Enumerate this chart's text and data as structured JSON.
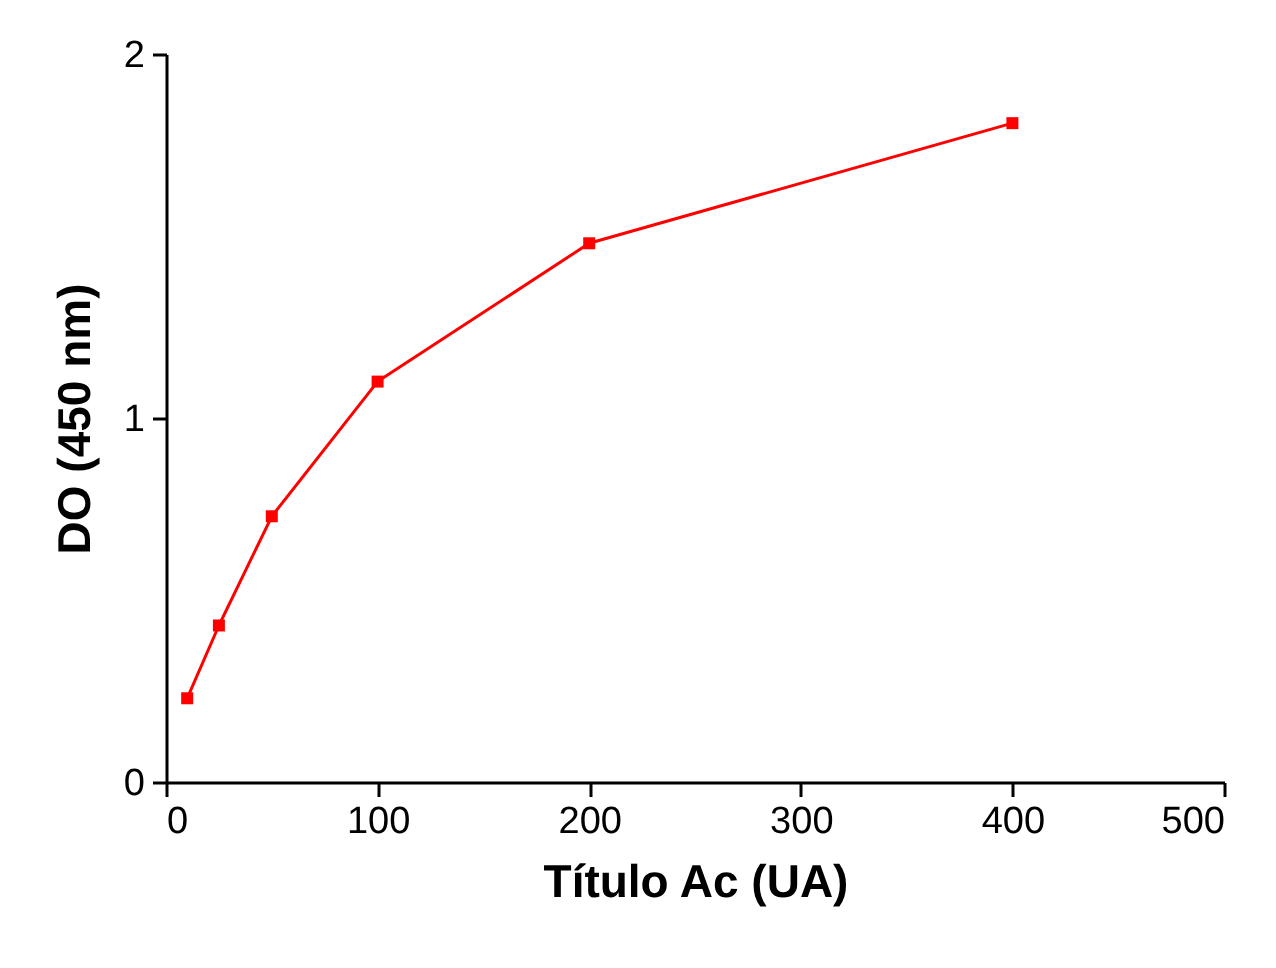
{
  "chart_data": {
    "type": "line",
    "xlabel": "Título Ac (UA)",
    "ylabel": "DO (450 nm)",
    "x": [
      10,
      25,
      50,
      100,
      200,
      400
    ],
    "series": [
      {
        "color": "#ff0000",
        "values": [
          0.23,
          0.43,
          0.73,
          1.1,
          1.48,
          1.81
        ]
      }
    ],
    "xlim": [
      0,
      500
    ],
    "xticks": [
      0,
      100,
      200,
      300,
      400,
      500
    ],
    "ylim": [
      0,
      2
    ],
    "yticks": [
      0,
      1,
      2
    ],
    "grid": false,
    "marker": "square",
    "line_style": "solid"
  }
}
